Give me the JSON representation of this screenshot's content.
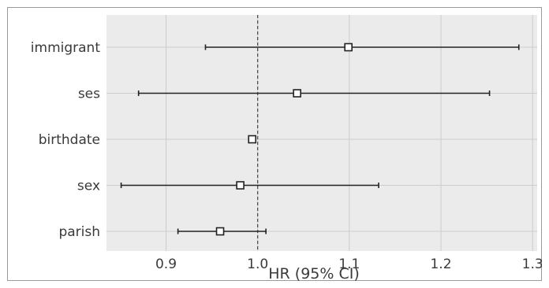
{
  "chart_data": {
    "type": "scatter",
    "subtype": "forest-plot",
    "title": "",
    "xlabel": "HR (95% CI)",
    "ylabel": "",
    "xlim": [
      0.835,
      1.305
    ],
    "xticks": [
      0.9,
      1.0,
      1.1,
      1.2,
      1.3
    ],
    "xtick_labels": [
      "0.9",
      "1.0",
      "1.1",
      "1.2",
      "1.3"
    ],
    "reference_line": 1.0,
    "grid": true,
    "colors": {
      "plot_background": "#ebebeb",
      "grid": "#cccccc",
      "marker_fill": "#ffffff",
      "line": "#222222"
    },
    "rows": [
      {
        "label": "immigrant",
        "hr": 1.099,
        "ci_low": 0.943,
        "ci_high": 1.285
      },
      {
        "label": "ses",
        "hr": 1.043,
        "ci_low": 0.87,
        "ci_high": 1.253
      },
      {
        "label": "birthdate",
        "hr": 0.994,
        "ci_low": 0.991,
        "ci_high": 0.997
      },
      {
        "label": "sex",
        "hr": 0.981,
        "ci_low": 0.851,
        "ci_high": 1.132
      },
      {
        "label": "parish",
        "hr": 0.959,
        "ci_low": 0.913,
        "ci_high": 1.009
      }
    ]
  }
}
